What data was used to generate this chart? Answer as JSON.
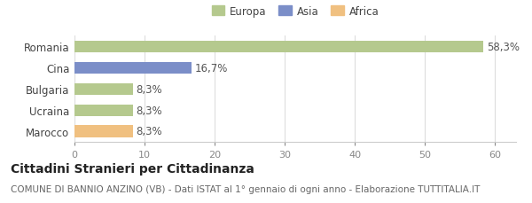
{
  "categories": [
    "Romania",
    "Cina",
    "Bulgaria",
    "Ucraina",
    "Marocco"
  ],
  "values": [
    58.3,
    16.7,
    8.3,
    8.3,
    8.3
  ],
  "labels": [
    "58,3%",
    "16,7%",
    "8,3%",
    "8,3%",
    "8,3%"
  ],
  "bar_colors": [
    "#b5c98e",
    "#7b8ec8",
    "#b5c98e",
    "#b5c98e",
    "#f0c080"
  ],
  "legend_items": [
    {
      "label": "Europa",
      "color": "#b5c98e"
    },
    {
      "label": "Asia",
      "color": "#7b8ec8"
    },
    {
      "label": "Africa",
      "color": "#f0c080"
    }
  ],
  "xlim": [
    0,
    63
  ],
  "xticks": [
    0,
    10,
    20,
    30,
    40,
    50,
    60
  ],
  "title": "Cittadini Stranieri per Cittadinanza",
  "subtitle": "COMUNE DI BANNIO ANZINO (VB) - Dati ISTAT al 1° gennaio di ogni anno - Elaborazione TUTTITALIA.IT",
  "background_color": "#ffffff",
  "bar_height": 0.55,
  "label_fontsize": 8.5,
  "tick_fontsize": 8,
  "category_fontsize": 8.5,
  "title_fontsize": 10,
  "subtitle_fontsize": 7.5
}
